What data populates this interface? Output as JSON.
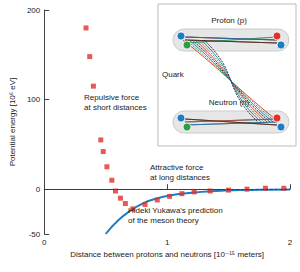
{
  "chart_data": {
    "type": "scatter",
    "x_label": "Distance between protons and neutrons [10⁻¹⁵ meters]",
    "y_label": "Potential energy [10⁶ eV]",
    "xlim": [
      0,
      2
    ],
    "xticks": [
      0,
      1,
      2
    ],
    "ylim": [
      -50,
      200
    ],
    "yticks": [
      -50,
      0,
      100,
      200
    ],
    "hline": 0,
    "grid": false,
    "series": [
      {
        "type": "scatter",
        "color": "#e0312c",
        "marker": "square",
        "x": [
          0.34,
          0.37,
          0.4,
          0.46,
          0.48,
          0.51,
          0.55,
          0.58,
          0.62,
          0.66,
          0.72,
          0.82,
          0.92,
          1.02,
          1.12,
          1.22,
          1.35,
          1.5,
          1.65,
          1.8,
          1.95
        ],
        "values": [
          180,
          148,
          115,
          55,
          42,
          25,
          10,
          -2,
          -10,
          -16,
          -22,
          -17,
          -12,
          -8,
          -5,
          -3,
          -2,
          -1,
          0,
          1,
          1
        ]
      },
      {
        "type": "line",
        "color": "#1b7dc4",
        "x": [
          0.5,
          0.6,
          0.7,
          0.8,
          0.9,
          1.0,
          1.2,
          1.4,
          1.6,
          1.8,
          2.0
        ],
        "values": [
          -50,
          -35,
          -24,
          -16,
          -11,
          -7.5,
          -4,
          -2,
          -1,
          -0.5,
          -0.3
        ]
      }
    ],
    "annotations": [
      "Repulsive force\nat short distances",
      "Attractive force\nat long distances",
      "Hideki Yukawa's prediction\nof the meson theory"
    ],
    "inset": {
      "labels": [
        "Proton (p)",
        "Quark",
        "Neutron (n)"
      ]
    }
  }
}
